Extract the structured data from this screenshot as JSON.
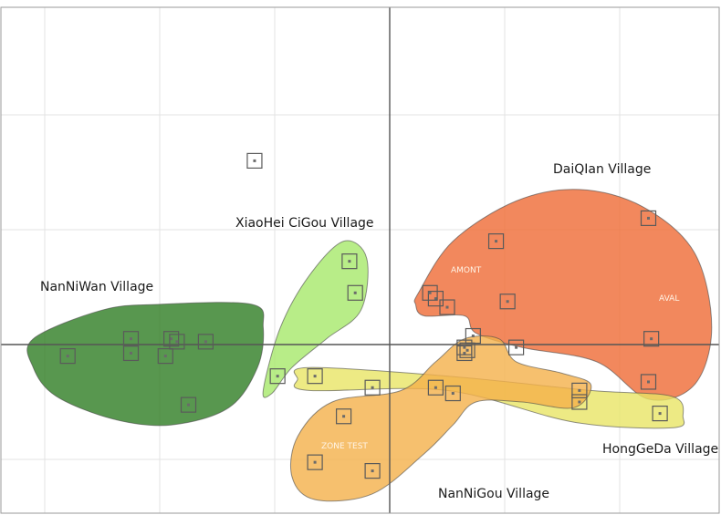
{
  "chart_data": {
    "type": "scatter",
    "title": "",
    "xlabel": "",
    "ylabel": "",
    "xlim": [
      -6.6,
      6.2
    ],
    "ylim": [
      -4.1,
      4.1
    ],
    "grid": true,
    "axes_through_origin": true,
    "marker": "hollow-square",
    "groups": [
      {
        "name": "NanNiWan Village",
        "color": "#2e7d23",
        "hull": [
          [
            -6.2,
            0.1
          ],
          [
            -5.0,
            0.6
          ],
          [
            -4.0,
            0.7
          ],
          [
            -2.4,
            0.7
          ],
          [
            -2.2,
            0.3
          ],
          [
            -2.3,
            -0.4
          ],
          [
            -2.8,
            -1.1
          ],
          [
            -3.8,
            -1.4
          ],
          [
            -4.8,
            -1.3
          ],
          [
            -5.8,
            -0.9
          ],
          [
            -6.2,
            -0.4
          ]
        ],
        "points": [
          [
            -5.6,
            -0.2
          ],
          [
            -4.5,
            0.1
          ],
          [
            -4.5,
            -0.15
          ],
          [
            -3.8,
            0.1
          ],
          [
            -3.7,
            0.05
          ],
          [
            -3.9,
            -0.2
          ],
          [
            -3.2,
            0.05
          ],
          [
            -3.5,
            -1.05
          ]
        ]
      },
      {
        "name": "XiaoHei CiGou Village",
        "color": "#a6e86a",
        "hull": [
          [
            -2.2,
            -0.8
          ],
          [
            -1.9,
            0.3
          ],
          [
            -1.4,
            1.2
          ],
          [
            -0.8,
            1.8
          ],
          [
            -0.4,
            1.5
          ],
          [
            -0.5,
            0.6
          ],
          [
            -1.1,
            0.1
          ],
          [
            -1.7,
            -0.4
          ],
          [
            -2.05,
            -0.85
          ]
        ],
        "points": [
          [
            -0.7,
            1.45
          ],
          [
            -0.6,
            0.9
          ],
          [
            -1.95,
            -0.55
          ]
        ]
      },
      {
        "name": "DaiQIan Village",
        "color": "#ef6a35",
        "hull": [
          [
            0.5,
            0.9
          ],
          [
            1.1,
            1.8
          ],
          [
            2.2,
            2.5
          ],
          [
            3.3,
            2.7
          ],
          [
            4.4,
            2.4
          ],
          [
            5.3,
            1.6
          ],
          [
            5.6,
            0.3
          ],
          [
            5.3,
            -0.7
          ],
          [
            4.5,
            -0.95
          ],
          [
            3.6,
            -0.3
          ],
          [
            2.3,
            -0.05
          ],
          [
            1.5,
            0.2
          ],
          [
            1.3,
            0.5
          ],
          [
            0.6,
            0.5
          ],
          [
            0.45,
            0.7
          ]
        ],
        "points": [
          [
            4.5,
            2.2
          ],
          [
            1.85,
            1.8
          ],
          [
            0.8,
            0.8
          ],
          [
            1.0,
            0.65
          ],
          [
            2.05,
            0.75
          ],
          [
            4.55,
            0.1
          ],
          [
            2.2,
            -0.05
          ],
          [
            4.5,
            -0.65
          ],
          [
            0.7,
            0.9
          ]
        ],
        "inner_labels": [
          {
            "text": "AMONT",
            "at": [
              1.0,
              1.2
            ]
          },
          {
            "text": "AVAL",
            "at": [
              4.6,
              0.8
            ]
          }
        ]
      },
      {
        "name": "HongGeDa Village",
        "color": "#e8e565",
        "hull": [
          [
            -1.4,
            -0.4
          ],
          [
            1.0,
            -0.55
          ],
          [
            3.5,
            -0.8
          ],
          [
            4.9,
            -0.9
          ],
          [
            5.1,
            -1.25
          ],
          [
            4.9,
            -1.45
          ],
          [
            3.2,
            -1.35
          ],
          [
            1.0,
            -0.8
          ],
          [
            -1.4,
            -0.8
          ],
          [
            -1.6,
            -0.6
          ]
        ],
        "points": [
          [
            -1.3,
            -0.55
          ],
          [
            -0.3,
            -0.75
          ],
          [
            0.8,
            -0.75
          ],
          [
            1.1,
            -0.85
          ],
          [
            3.3,
            -0.8
          ],
          [
            3.3,
            -1.0
          ],
          [
            4.7,
            -1.2
          ],
          [
            1.35,
            -0.1
          ],
          [
            1.3,
            -0.15
          ]
        ]
      },
      {
        "name": "NanNiGou Village",
        "color": "#f4b04a",
        "hull": [
          [
            -1.6,
            -1.6
          ],
          [
            -1.0,
            -1.0
          ],
          [
            0.2,
            -0.8
          ],
          [
            0.8,
            -0.3
          ],
          [
            1.3,
            0.1
          ],
          [
            1.9,
            0.1
          ],
          [
            2.2,
            -0.3
          ],
          [
            3.0,
            -0.5
          ],
          [
            3.5,
            -0.7
          ],
          [
            3.2,
            -1.1
          ],
          [
            2.3,
            -1.0
          ],
          [
            1.5,
            -1.0
          ],
          [
            1.1,
            -1.4
          ],
          [
            0.6,
            -1.9
          ],
          [
            -0.3,
            -2.6
          ],
          [
            -1.3,
            -2.7
          ],
          [
            -1.7,
            -2.3
          ]
        ],
        "points": [
          [
            -0.8,
            -1.25
          ],
          [
            -1.3,
            -2.05
          ],
          [
            -0.3,
            -2.2
          ],
          [
            1.3,
            -0.05
          ]
        ],
        "inner_labels": [
          {
            "text": "ZONE TEST",
            "at": [
              -0.75,
              -1.75
            ]
          }
        ]
      }
    ],
    "unassigned_points": [
      [
        -2.35,
        3.2
      ],
      [
        1.45,
        0.15
      ]
    ]
  },
  "labels": {
    "daiqian": "DaiQIan Village",
    "xiaohei": "XiaoHei CiGou Village",
    "nanniwan": "NanNiWan Village",
    "honggeda": "HongGeDa Village",
    "nannigou": "NanNiGou Village",
    "amont": "AMONT",
    "aval": "AVAL",
    "zone": "ZONE TEST"
  }
}
